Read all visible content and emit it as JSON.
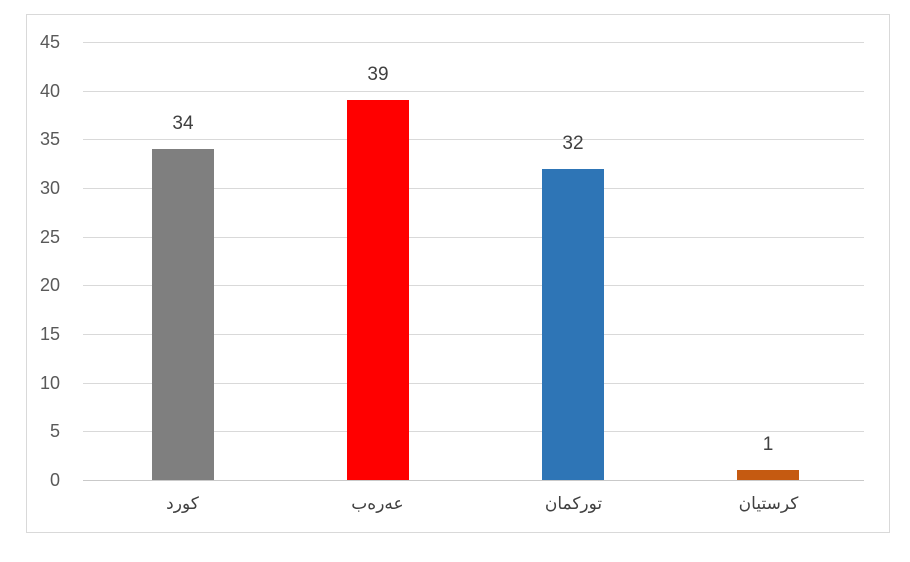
{
  "chart_data": {
    "type": "bar",
    "title": "",
    "xlabel": "",
    "ylabel": "",
    "categories": [
      "كورد",
      "عەرەب",
      "توركمان",
      "كرستيان"
    ],
    "values": [
      34,
      39,
      32,
      1
    ],
    "data_labels": [
      "34",
      "39",
      "32",
      "1"
    ],
    "bar_colors": [
      "#7F7F7F",
      "#FF0000",
      "#2E75B6",
      "#C55A11"
    ],
    "yticks": [
      0,
      5,
      10,
      15,
      20,
      25,
      30,
      35,
      40,
      45
    ],
    "ytick_labels": [
      "0",
      "5",
      "10",
      "15",
      "20",
      "25",
      "30",
      "35",
      "40",
      "45"
    ],
    "ylim": [
      0,
      45
    ],
    "grid": true,
    "legend": "none",
    "colors": {
      "gridline": "#D9D9D9",
      "axis_line": "#C9C9C9",
      "tick_label": "#595959",
      "data_label": "#404040",
      "category_label": "#404040",
      "frame_border": "#D9D9D9",
      "background": "#FFFFFF"
    }
  }
}
